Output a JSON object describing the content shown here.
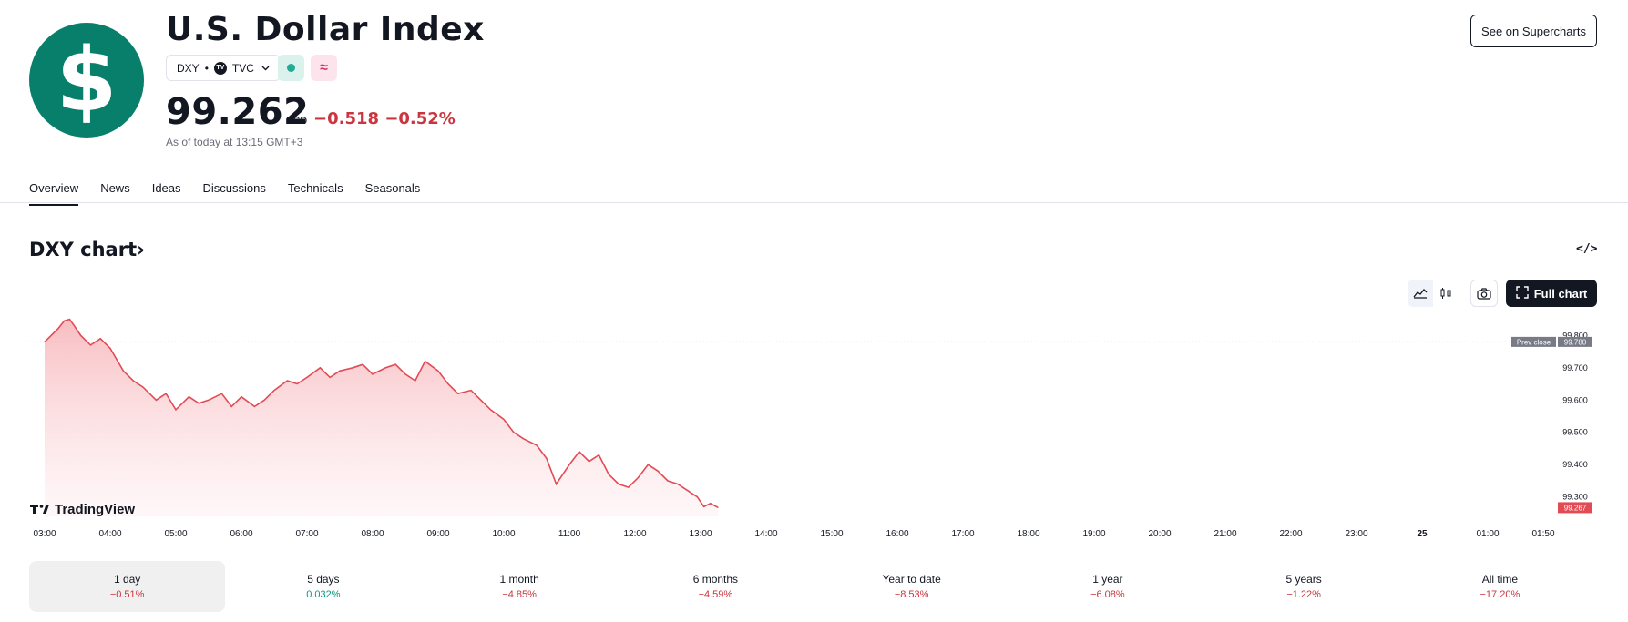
{
  "header": {
    "logo_glyph": "$",
    "title": "U.S. Dollar Index",
    "symbol": "DXY",
    "separator": "•",
    "exchange_logo": "TV",
    "exchange": "TVC",
    "delay_glyph": "≈",
    "price": "99.262",
    "currency": "USD",
    "change": "−0.518",
    "change_pct": "−0.52%",
    "as_of": "As of today at 13:15 GMT+3",
    "supercharts_button": "See on Supercharts"
  },
  "tabs": [
    {
      "label": "Overview",
      "active": true
    },
    {
      "label": "News"
    },
    {
      "label": "Ideas"
    },
    {
      "label": "Discussions"
    },
    {
      "label": "Technicals"
    },
    {
      "label": "Seasonals"
    }
  ],
  "chart_section": {
    "heading": "DXY chart",
    "heading_arrow": "›",
    "embed_icon": "</>",
    "full_chart_label": "Full chart",
    "watermark": "TradingView"
  },
  "chart_data": {
    "type": "area",
    "x_tick_labels": [
      "03:00",
      "04:00",
      "05:00",
      "06:00",
      "07:00",
      "08:00",
      "09:00",
      "10:00",
      "11:00",
      "12:00",
      "13:00",
      "14:00",
      "15:00",
      "16:00",
      "17:00",
      "18:00",
      "19:00",
      "20:00",
      "21:00",
      "22:00",
      "23:00",
      "25",
      "01:00",
      "01:50"
    ],
    "y_tick_labels": [
      "99.800",
      "99.700",
      "99.600",
      "99.500",
      "99.400",
      "99.300"
    ],
    "ylim": [
      99.24,
      99.86
    ],
    "prev_close": {
      "label": "Prev close",
      "value": 99.78,
      "value_label": "99.780"
    },
    "last_price": {
      "value": 99.267,
      "value_label": "99.267"
    },
    "series_color": "#e24a54",
    "x_hours": [
      0,
      0.1,
      0.2,
      0.3,
      0.38,
      0.45,
      0.55,
      0.7,
      0.85,
      1.0,
      1.2,
      1.35,
      1.5,
      1.7,
      1.85,
      2.0,
      2.2,
      2.35,
      2.5,
      2.7,
      2.85,
      3.0,
      3.2,
      3.35,
      3.5,
      3.7,
      3.85,
      4.0,
      4.2,
      4.35,
      4.5,
      4.7,
      4.85,
      5.0,
      5.2,
      5.35,
      5.5,
      5.65,
      5.8,
      6.0,
      6.15,
      6.3,
      6.5,
      6.65,
      6.8,
      7.0,
      7.15,
      7.3,
      7.5,
      7.65,
      7.8,
      8.0,
      8.15,
      8.3,
      8.45,
      8.6,
      8.75,
      8.9,
      9.05,
      9.2,
      9.35,
      9.5,
      9.65,
      9.8,
      9.95,
      10.05,
      10.15,
      10.27
    ],
    "values": [
      99.78,
      99.8,
      99.82,
      99.845,
      99.85,
      99.83,
      99.8,
      99.77,
      99.79,
      99.76,
      99.69,
      99.66,
      99.64,
      99.6,
      99.62,
      99.57,
      99.61,
      99.59,
      99.6,
      99.62,
      99.58,
      99.61,
      99.58,
      99.6,
      99.63,
      99.66,
      99.65,
      99.67,
      99.7,
      99.67,
      99.69,
      99.7,
      99.71,
      99.68,
      99.7,
      99.71,
      99.68,
      99.66,
      99.72,
      99.69,
      99.65,
      99.62,
      99.63,
      99.6,
      99.57,
      99.54,
      99.5,
      99.48,
      99.46,
      99.42,
      99.34,
      99.4,
      99.44,
      99.41,
      99.43,
      99.37,
      99.34,
      99.33,
      99.36,
      99.4,
      99.38,
      99.35,
      99.34,
      99.32,
      99.3,
      99.27,
      99.28,
      99.267
    ]
  },
  "periods": [
    {
      "label": "1 day",
      "value": "−0.51%",
      "direction": "neg",
      "active": true
    },
    {
      "label": "5 days",
      "value": "0.032%",
      "direction": "pos"
    },
    {
      "label": "1 month",
      "value": "−4.85%",
      "direction": "neg"
    },
    {
      "label": "6 months",
      "value": "−4.59%",
      "direction": "neg"
    },
    {
      "label": "Year to date",
      "value": "−8.53%",
      "direction": "neg"
    },
    {
      "label": "1 year",
      "value": "−6.08%",
      "direction": "neg"
    },
    {
      "label": "5 years",
      "value": "−1.22%",
      "direction": "neg"
    },
    {
      "label": "All time",
      "value": "−17.20%",
      "direction": "neg"
    }
  ],
  "icons": {
    "logo": "dollar-sign-icon",
    "area_chart": "area-chart-icon",
    "candles": "candlestick-icon",
    "camera": "camera-icon",
    "fullscreen": "fullscreen-icon",
    "embed": "embed-code-icon",
    "market_status": "market-status-icon",
    "delayed_data": "delayed-data-icon"
  }
}
